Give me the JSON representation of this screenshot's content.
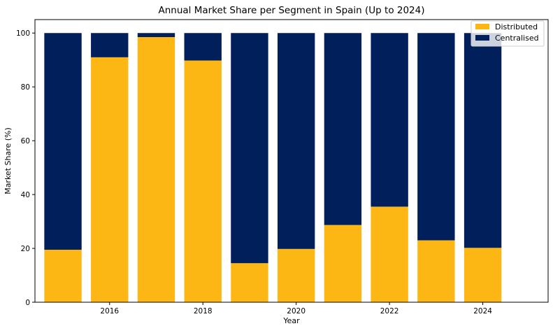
{
  "chart_data": {
    "type": "bar",
    "stacked": true,
    "title": "Annual Market Share per Segment in Spain (Up to 2024)",
    "xlabel": "Year",
    "ylabel": "Market Share (%)",
    "x": [
      2015,
      2016,
      2017,
      2018,
      2019,
      2020,
      2021,
      2022,
      2023,
      2024
    ],
    "xticks": [
      "2016",
      "2018",
      "2020",
      "2022",
      "2024"
    ],
    "yticks": [
      "0",
      "20",
      "40",
      "60",
      "80",
      "100"
    ],
    "xlim": [
      2014.4,
      2025.4
    ],
    "ylim": [
      0,
      105
    ],
    "series": [
      {
        "name": "Distributed",
        "color": "#fdb714",
        "values": [
          19.5,
          91.0,
          98.5,
          89.8,
          14.5,
          19.8,
          28.7,
          35.5,
          23.0,
          20.2
        ]
      },
      {
        "name": "Centralised",
        "color": "#001f5b",
        "values": [
          80.5,
          9.0,
          1.5,
          10.2,
          85.5,
          80.2,
          71.3,
          64.5,
          77.0,
          79.8
        ]
      }
    ],
    "legend_position": "top-right",
    "grid": false
  }
}
